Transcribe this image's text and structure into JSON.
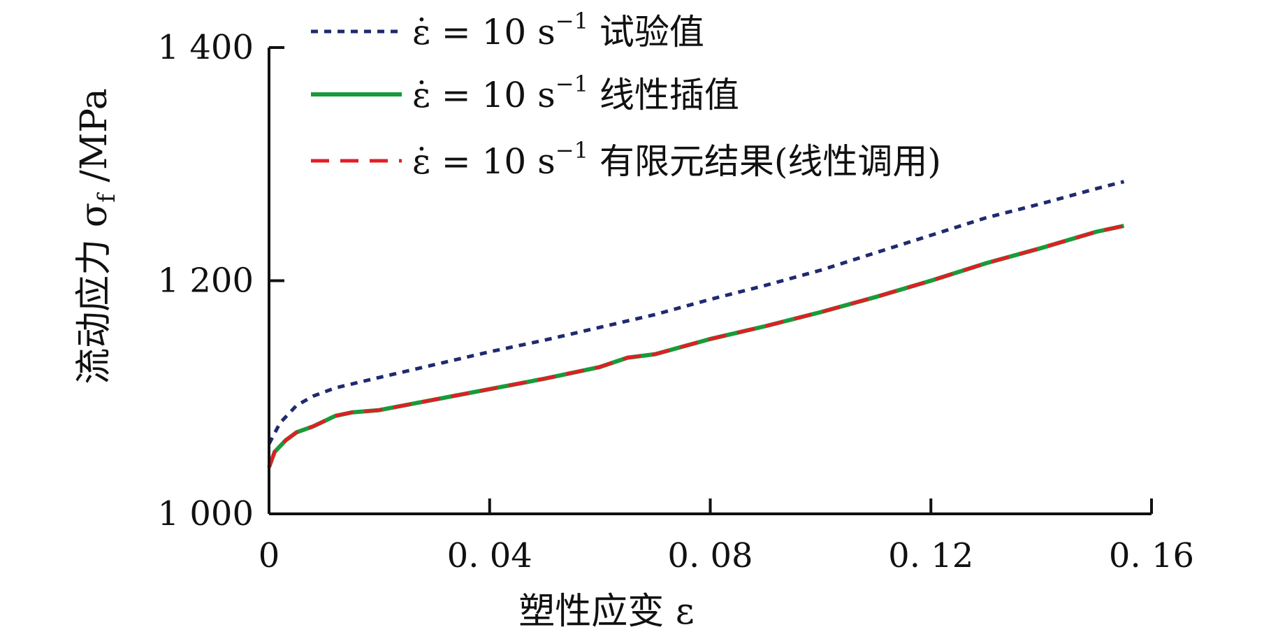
{
  "colors": {
    "axis": "#111111",
    "experimental": "#1f2a6e",
    "interpolation": "#1a9a3a",
    "fem": "#e01e25"
  },
  "chart_data": {
    "type": "line",
    "xlabel": "塑性应变 ε",
    "ylabel": "流动应力 σ_f /MPa",
    "xlim": [
      0,
      0.16
    ],
    "ylim": [
      1000,
      1400
    ],
    "x_ticks": [
      0,
      0.04,
      0.08,
      0.12,
      0.16
    ],
    "x_tick_labels": [
      "0",
      "0. 04",
      "0. 08",
      "0. 12",
      "0. 16"
    ],
    "y_ticks": [
      1000,
      1200,
      1400
    ],
    "y_tick_labels": [
      "1 000",
      "1 200",
      "1 400"
    ],
    "legend_position": "top",
    "series": [
      {
        "name": "ε̇ = 10 s⁻¹ 试验值",
        "line_style": "dotted",
        "color": "#1f2a6e",
        "x": [
          0,
          0.002,
          0.005,
          0.008,
          0.012,
          0.02,
          0.03,
          0.04,
          0.05,
          0.06,
          0.07,
          0.08,
          0.09,
          0.1,
          0.11,
          0.12,
          0.13,
          0.14,
          0.15,
          0.155
        ],
        "y": [
          1060,
          1078,
          1093,
          1101,
          1108,
          1117,
          1128,
          1139,
          1149,
          1160,
          1171,
          1184,
          1196,
          1209,
          1224,
          1239,
          1254,
          1266,
          1279,
          1285
        ]
      },
      {
        "name": "ε̇ = 10 s⁻¹ 线性插值",
        "line_style": "solid",
        "color": "#1a9a3a",
        "x": [
          0,
          0.001,
          0.003,
          0.005,
          0.008,
          0.012,
          0.015,
          0.02,
          0.03,
          0.04,
          0.05,
          0.06,
          0.065,
          0.07,
          0.08,
          0.09,
          0.1,
          0.11,
          0.12,
          0.13,
          0.14,
          0.15,
          0.155
        ],
        "y": [
          1040,
          1053,
          1063,
          1070,
          1075,
          1084,
          1087,
          1089,
          1098,
          1107,
          1116,
          1126,
          1134,
          1137,
          1150,
          1161,
          1173,
          1186,
          1200,
          1215,
          1228,
          1242,
          1247
        ]
      },
      {
        "name": "ε̇ = 10 s⁻¹ 有限元结果(线性调用)",
        "line_style": "dashed",
        "color": "#e01e25",
        "x": [
          0,
          0.001,
          0.003,
          0.005,
          0.008,
          0.012,
          0.015,
          0.02,
          0.03,
          0.04,
          0.05,
          0.06,
          0.065,
          0.07,
          0.08,
          0.09,
          0.1,
          0.11,
          0.12,
          0.13,
          0.14,
          0.15,
          0.155
        ],
        "y": [
          1040,
          1053,
          1063,
          1070,
          1075,
          1084,
          1087,
          1089,
          1098,
          1107,
          1116,
          1126,
          1134,
          1137,
          1150,
          1161,
          1173,
          1186,
          1200,
          1215,
          1228,
          1242,
          1247
        ]
      }
    ],
    "legend": [
      {
        "rate": "ε̇ = 10 s",
        "exp": "−1",
        "label": "试验值"
      },
      {
        "rate": "ε̇ = 10 s",
        "exp": "−1",
        "label": "线性插值"
      },
      {
        "rate": "ε̇ = 10 s",
        "exp": "−1",
        "label": "有限元结果(线性调用)"
      }
    ]
  }
}
